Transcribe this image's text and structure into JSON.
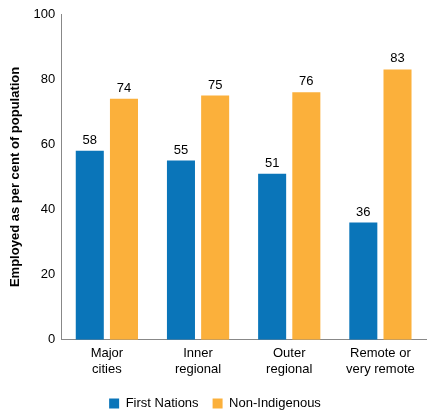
{
  "chart_data": {
    "type": "bar",
    "y_label": "Employed as per cent of population",
    "categories": [
      "Major cities",
      "Inner regional",
      "Outer regional",
      "Remote or very remote"
    ],
    "series": [
      {
        "name": "First Nations",
        "color": "#0a75b9",
        "values": [
          58,
          55,
          51,
          36
        ]
      },
      {
        "name": "Non-Indigenous",
        "color": "#fbb03b",
        "values": [
          74,
          75,
          76,
          83
        ]
      }
    ],
    "ylim": [
      0,
      100
    ],
    "yticks": [
      0,
      20,
      40,
      60,
      80,
      100
    ],
    "grid": false,
    "legend": "bottom",
    "data_labels": true
  }
}
